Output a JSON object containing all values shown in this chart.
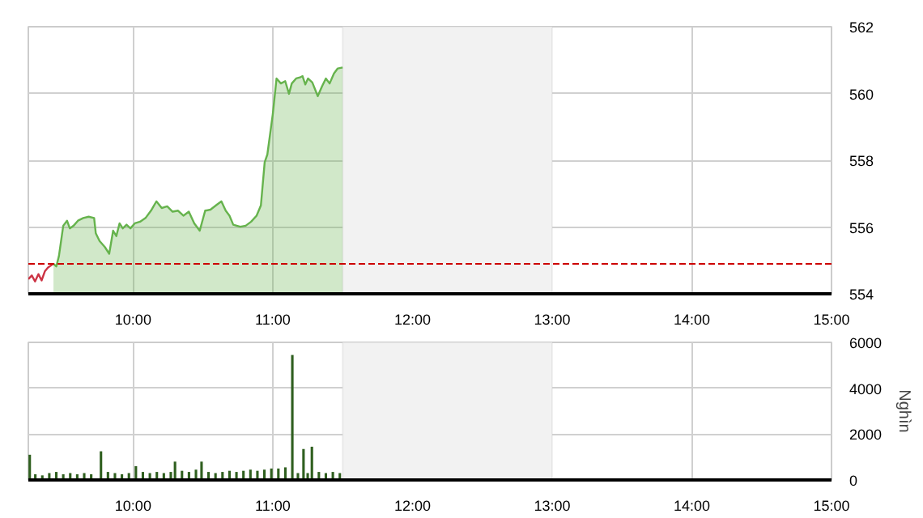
{
  "chart_data": [
    {
      "type": "area",
      "xlim": [
        9.25,
        15
      ],
      "xticks": [
        {
          "value": 10,
          "label": "10:00"
        },
        {
          "value": 11,
          "label": "11:00"
        },
        {
          "value": 12,
          "label": "12:00"
        },
        {
          "value": 13,
          "label": "13:00"
        },
        {
          "value": 14,
          "label": "14:00"
        },
        {
          "value": 15,
          "label": "15:00"
        }
      ],
      "ylim": [
        554,
        562
      ],
      "yticks": [
        554,
        556,
        558,
        560,
        562
      ],
      "grid": true,
      "ref_lines": [
        {
          "axis": "y",
          "value": 554.9,
          "color": "#cc0000",
          "line_style": "dashed"
        }
      ],
      "bands": [
        {
          "axis": "x",
          "from": 11.5,
          "to": 13,
          "color": "#f2f2f2"
        }
      ],
      "series": [
        {
          "type": "line",
          "color": "#cc3344",
          "x": [
            9.25,
            9.275,
            9.298,
            9.322,
            9.345,
            9.368,
            9.391,
            9.43
          ],
          "values": [
            554.44,
            554.55,
            554.37,
            554.59,
            554.4,
            554.67,
            554.79,
            554.9
          ]
        },
        {
          "type": "area",
          "color": "#66b34d",
          "x": [
            9.43,
            9.45,
            9.469,
            9.5,
            9.527,
            9.547,
            9.574,
            9.605,
            9.643,
            9.682,
            9.721,
            9.733,
            9.76,
            9.798,
            9.829,
            9.857,
            9.88,
            9.903,
            9.926,
            9.953,
            9.981,
            10.012,
            10.05,
            10.089,
            10.128,
            10.167,
            10.205,
            10.244,
            10.283,
            10.322,
            10.36,
            10.399,
            10.438,
            10.477,
            10.516,
            10.554,
            10.593,
            10.632,
            10.663,
            10.69,
            10.717,
            10.767,
            10.806,
            10.845,
            10.884,
            10.915,
            10.942,
            10.961,
            11.0,
            11.027,
            11.058,
            11.089,
            11.116,
            11.136,
            11.167,
            11.194,
            11.213,
            11.233,
            11.252,
            11.283,
            11.322,
            11.353,
            11.38,
            11.407,
            11.438,
            11.465,
            11.5
          ],
          "values": [
            554.9,
            554.82,
            555.13,
            556.04,
            556.19,
            555.96,
            556.04,
            556.19,
            556.27,
            556.31,
            556.27,
            555.81,
            555.58,
            555.4,
            555.2,
            555.89,
            555.73,
            556.11,
            555.96,
            556.07,
            555.96,
            556.11,
            556.16,
            556.27,
            556.49,
            556.77,
            556.57,
            556.62,
            556.46,
            556.49,
            556.34,
            556.46,
            556.11,
            555.89,
            556.49,
            556.52,
            556.65,
            556.77,
            556.49,
            556.34,
            556.07,
            556.01,
            556.04,
            556.16,
            556.34,
            556.65,
            557.94,
            558.17,
            559.38,
            560.45,
            560.3,
            560.37,
            559.99,
            560.3,
            560.45,
            560.48,
            560.52,
            560.27,
            560.45,
            560.33,
            559.92,
            560.22,
            560.45,
            560.3,
            560.6,
            560.75,
            560.78
          ]
        }
      ]
    },
    {
      "type": "bar",
      "ylabel": "Nghìn",
      "color": "#2f5f1f",
      "xlim": [
        9.25,
        15
      ],
      "xticks": [
        {
          "value": 10,
          "label": "10:00"
        },
        {
          "value": 11,
          "label": "11:00"
        },
        {
          "value": 12,
          "label": "12:00"
        },
        {
          "value": 13,
          "label": "13:00"
        },
        {
          "value": 14,
          "label": "14:00"
        },
        {
          "value": 15,
          "label": "15:00"
        }
      ],
      "ylim": [
        0,
        6000
      ],
      "yticks": [
        0,
        2000,
        4000,
        6000
      ],
      "grid": true,
      "bands": [
        {
          "axis": "x",
          "from": 11.5,
          "to": 13,
          "color": "#f2f2f2"
        }
      ],
      "x": [
        9.26,
        9.3,
        9.35,
        9.4,
        9.45,
        9.5,
        9.55,
        9.6,
        9.65,
        9.7,
        9.77,
        9.82,
        9.87,
        9.92,
        9.97,
        10.02,
        10.07,
        10.12,
        10.17,
        10.22,
        10.27,
        10.3,
        10.35,
        10.4,
        10.45,
        10.49,
        10.54,
        10.59,
        10.64,
        10.69,
        10.74,
        10.79,
        10.84,
        10.89,
        10.94,
        10.99,
        11.04,
        11.09,
        11.14,
        11.18,
        11.22,
        11.25,
        11.28,
        11.33,
        11.38,
        11.43,
        11.48
      ],
      "values": [
        1100,
        250,
        200,
        300,
        350,
        250,
        300,
        250,
        300,
        250,
        1250,
        350,
        300,
        250,
        300,
        600,
        350,
        300,
        350,
        300,
        350,
        800,
        400,
        350,
        450,
        800,
        350,
        300,
        350,
        400,
        350,
        400,
        450,
        400,
        450,
        500,
        500,
        550,
        5450,
        300,
        1350,
        300,
        1450,
        350,
        300,
        350,
        300
      ]
    }
  ]
}
